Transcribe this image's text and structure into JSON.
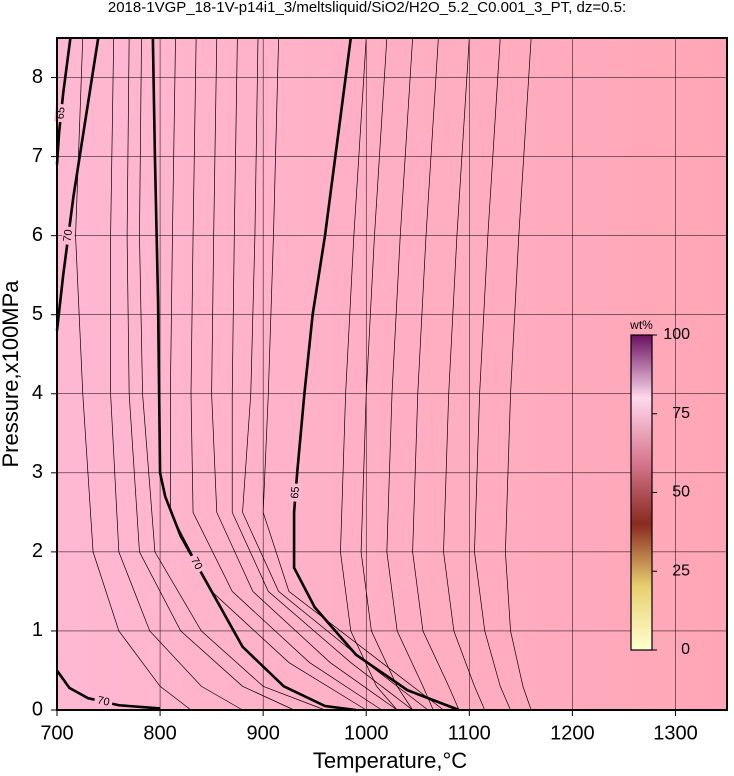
{
  "chart_data": {
    "type": "contour",
    "title": "2018-1VGP_18-1V-p14i1_3/meltsliquid/SiO2/H2O_5.2_C0.001_3_PT, dz=0.5:",
    "x_label": "Temperature,°C",
    "y_label": "Pressure,x100MPa",
    "xlim": [
      700,
      1350
    ],
    "ylim": [
      0,
      8.5
    ],
    "xticks": [
      700,
      800,
      900,
      1000,
      1100,
      1200,
      1300
    ],
    "yticks": [
      0,
      1,
      2,
      3,
      4,
      5,
      6,
      7,
      8
    ],
    "grid": true,
    "background_colors": [
      "#ffb8d2",
      "#ffa6b6"
    ],
    "contours": [
      {
        "level": 70,
        "bold": true,
        "x": [
          793,
          795,
          798,
          800,
          805,
          820,
          850,
          880,
          920,
          960,
          990
        ],
        "y": [
          8.5,
          7,
          5.2,
          3.0,
          2.7,
          2.2,
          1.5,
          0.8,
          0.3,
          0.05,
          0
        ]
      },
      {
        "level": 65,
        "bold": true,
        "x": [
          985,
          972,
          960,
          948,
          940,
          933,
          930,
          930,
          950,
          990,
          1040,
          1090
        ],
        "y": [
          8.5,
          7.2,
          6.0,
          5.0,
          4.0,
          3.0,
          2.5,
          1.8,
          1.3,
          0.7,
          0.25,
          0
        ]
      },
      {
        "level": 70,
        "bold": true,
        "x": [
          740,
          728,
          716,
          706,
          700
        ],
        "y": [
          8.5,
          7.5,
          6.5,
          5.5,
          4.8
        ]
      },
      {
        "level": 65,
        "bold": true,
        "x": [
          713,
          706,
          702,
          700
        ],
        "y": [
          8.5,
          7.8,
          7.3,
          6.9
        ]
      },
      {
        "level": 70,
        "bold": true,
        "x": [
          700,
          712,
          730,
          760,
          800
        ],
        "y": [
          0.5,
          0.28,
          0.15,
          0.06,
          0.02
        ]
      },
      {
        "bold": false,
        "x": [
          1000,
          988,
          980,
          975,
          985,
          1010,
          1030
        ],
        "y": [
          8.5,
          6,
          4,
          2,
          1,
          0.3,
          0
        ]
      },
      {
        "bold": false,
        "x": [
          1020,
          1008,
          1000,
          995,
          1005,
          1030,
          1045
        ],
        "y": [
          8.5,
          6,
          4,
          2,
          1,
          0.3,
          0
        ]
      },
      {
        "bold": false,
        "x": [
          1045,
          1033,
          1025,
          1020,
          1030,
          1055,
          1065
        ],
        "y": [
          8.5,
          6,
          4,
          2,
          1,
          0.3,
          0
        ]
      },
      {
        "bold": false,
        "x": [
          1070,
          1058,
          1050,
          1045,
          1055,
          1080,
          1090
        ],
        "y": [
          8.5,
          6,
          4,
          2,
          1,
          0.3,
          0
        ]
      },
      {
        "bold": false,
        "x": [
          1100,
          1088,
          1080,
          1075,
          1085,
          1105,
          1115
        ],
        "y": [
          8.5,
          6,
          4,
          2,
          1,
          0.3,
          0
        ]
      },
      {
        "bold": false,
        "x": [
          1130,
          1118,
          1110,
          1105,
          1115,
          1130,
          1140
        ],
        "y": [
          8.5,
          6,
          4,
          2,
          1,
          0.3,
          0
        ]
      },
      {
        "bold": false,
        "x": [
          1160,
          1148,
          1140,
          1135,
          1140,
          1152,
          1160
        ],
        "y": [
          8.5,
          6,
          4,
          2,
          1,
          0.3,
          0
        ]
      },
      {
        "bold": false,
        "x": [
          815,
          812,
          810,
          810,
          850,
          925,
          1000
        ],
        "y": [
          8.5,
          6,
          4,
          2.5,
          1.5,
          0.6,
          0
        ]
      },
      {
        "bold": false,
        "x": [
          835,
          832,
          830,
          832,
          870,
          945,
          1015
        ],
        "y": [
          8.5,
          6,
          4,
          2.5,
          1.5,
          0.6,
          0
        ]
      },
      {
        "bold": false,
        "x": [
          855,
          852,
          850,
          855,
          890,
          965,
          1030
        ],
        "y": [
          8.5,
          6,
          4,
          2.5,
          1.5,
          0.6,
          0
        ]
      },
      {
        "bold": false,
        "x": [
          875,
          872,
          870,
          870,
          905,
          985,
          1045
        ],
        "y": [
          8.5,
          6,
          4,
          2.5,
          1.5,
          0.6,
          0
        ]
      },
      {
        "bold": false,
        "x": [
          895,
          892,
          888,
          880,
          915,
          1000,
          1060
        ],
        "y": [
          8.5,
          6,
          4,
          2.5,
          1.5,
          0.6,
          0
        ]
      },
      {
        "bold": false,
        "x": [
          915,
          910,
          905,
          900,
          925,
          1015,
          1075
        ],
        "y": [
          8.5,
          6,
          4,
          2.5,
          1.5,
          0.6,
          0
        ]
      },
      {
        "bold": false,
        "x": [
          755,
          752,
          752,
          760,
          790,
          840,
          880
        ],
        "y": [
          8.5,
          6,
          4,
          2,
          1,
          0.3,
          0
        ]
      },
      {
        "bold": false,
        "x": [
          770,
          768,
          770,
          780,
          820,
          880,
          930
        ],
        "y": [
          8.5,
          6,
          4,
          2,
          1,
          0.3,
          0
        ]
      },
      {
        "bold": false,
        "x": [
          782,
          780,
          783,
          795,
          840,
          900,
          960
        ],
        "y": [
          8.5,
          6,
          4,
          2,
          1,
          0.3,
          0
        ]
      },
      {
        "bold": false,
        "x": [
          725,
          718,
          725,
          735,
          760,
          800,
          830
        ],
        "y": [
          8.5,
          6,
          4,
          2,
          1,
          0.3,
          0
        ]
      }
    ],
    "colorbar": {
      "label": "wt%",
      "lim": [
        0,
        100
      ],
      "ticks": [
        0,
        25,
        50,
        75,
        100
      ],
      "colors": [
        "#ffffd0",
        "#e8d070",
        "#8a2a20",
        "#d87890",
        "#ffd8ec",
        "#6a1060"
      ]
    }
  }
}
